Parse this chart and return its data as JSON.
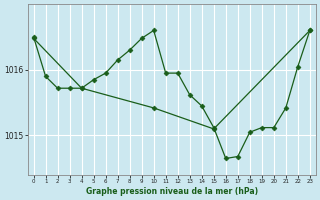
{
  "xlabel": "Graphe pression niveau de la mer (hPa)",
  "background_color": "#cce8f0",
  "grid_color": "#ffffff",
  "line_color": "#1a5e1a",
  "ylim": [
    1014.4,
    1017.0
  ],
  "yticks": [
    1015,
    1016
  ],
  "xlim": [
    -0.5,
    23.5
  ],
  "x_ticks": [
    0,
    1,
    2,
    3,
    4,
    5,
    6,
    7,
    8,
    9,
    10,
    11,
    12,
    13,
    14,
    15,
    16,
    17,
    18,
    19,
    20,
    21,
    22,
    23
  ],
  "line1_x": [
    0,
    1,
    2,
    3,
    4,
    5,
    6,
    7,
    8,
    9,
    10,
    11,
    12,
    13,
    14,
    15,
    16,
    17,
    18,
    19,
    20,
    21,
    22,
    23
  ],
  "line1_y": [
    1016.5,
    1015.9,
    1015.72,
    1015.72,
    1015.72,
    1015.85,
    1015.95,
    1016.15,
    1016.3,
    1016.48,
    1016.6,
    1015.95,
    1015.95,
    1015.62,
    1015.45,
    1015.12,
    1014.65,
    1014.68,
    1015.05,
    1015.12,
    1015.12,
    1015.42,
    1016.05,
    1016.6
  ],
  "line2_x": [
    0,
    4,
    10,
    15,
    23
  ],
  "line2_y": [
    1016.48,
    1015.72,
    1015.42,
    1015.1,
    1016.6
  ]
}
